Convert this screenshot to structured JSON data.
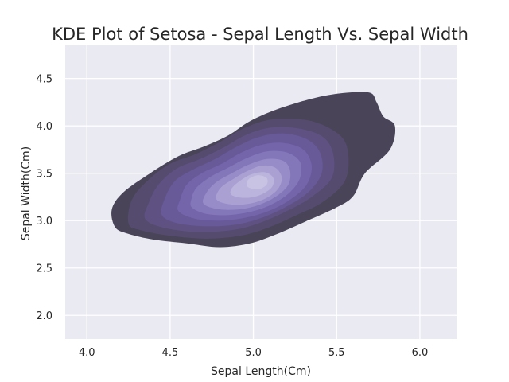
{
  "chart_data": {
    "type": "kde-contour",
    "title": "KDE Plot of Setosa - Sepal Length Vs. Sepal Width",
    "xlabel": "Sepal Length(Cm)",
    "ylabel": "Sepal Width(Cm)",
    "xlim": [
      3.87,
      6.22
    ],
    "ylim": [
      1.75,
      4.85
    ],
    "xticks": [
      4.0,
      4.5,
      5.0,
      5.5,
      6.0
    ],
    "yticks": [
      2.0,
      2.5,
      3.0,
      3.5,
      4.0,
      4.5
    ],
    "grid": true,
    "background": "#eaeaf2",
    "gridColor": "#ffffff",
    "levelColors": [
      "#4a4458",
      "#554b6e",
      "#5f5283",
      "#685a98",
      "#7465ab",
      "#8377ba",
      "#978cc7",
      "#aaa1d2",
      "#bbb4dc",
      "#c8c2e3"
    ],
    "levels": [
      {
        "points": [
          [
            4.17,
            2.93
          ],
          [
            4.25,
            2.86
          ],
          [
            4.4,
            2.8
          ],
          [
            4.6,
            2.76
          ],
          [
            4.8,
            2.72
          ],
          [
            4.98,
            2.76
          ],
          [
            5.13,
            2.85
          ],
          [
            5.3,
            2.98
          ],
          [
            5.5,
            3.14
          ],
          [
            5.6,
            3.26
          ],
          [
            5.67,
            3.5
          ],
          [
            5.82,
            3.75
          ],
          [
            5.85,
            4.0
          ],
          [
            5.78,
            4.1
          ],
          [
            5.74,
            4.25
          ],
          [
            5.7,
            4.35
          ],
          [
            5.56,
            4.35
          ],
          [
            5.38,
            4.3
          ],
          [
            5.15,
            4.18
          ],
          [
            4.98,
            4.05
          ],
          [
            4.85,
            3.9
          ],
          [
            4.7,
            3.78
          ],
          [
            4.55,
            3.68
          ],
          [
            4.38,
            3.5
          ],
          [
            4.22,
            3.3
          ],
          [
            4.15,
            3.12
          ]
        ]
      },
      {
        "points": [
          [
            4.25,
            2.97
          ],
          [
            4.32,
            2.9
          ],
          [
            4.5,
            2.84
          ],
          [
            4.72,
            2.81
          ],
          [
            4.92,
            2.84
          ],
          [
            5.08,
            2.92
          ],
          [
            5.25,
            3.05
          ],
          [
            5.42,
            3.2
          ],
          [
            5.55,
            3.42
          ],
          [
            5.57,
            3.7
          ],
          [
            5.52,
            3.9
          ],
          [
            5.35,
            4.05
          ],
          [
            5.12,
            4.07
          ],
          [
            4.95,
            3.98
          ],
          [
            4.8,
            3.83
          ],
          [
            4.65,
            3.7
          ],
          [
            4.5,
            3.6
          ],
          [
            4.37,
            3.43
          ],
          [
            4.27,
            3.22
          ]
        ]
      },
      {
        "points": [
          [
            4.35,
            3.02
          ],
          [
            4.45,
            2.93
          ],
          [
            4.65,
            2.88
          ],
          [
            4.87,
            2.9
          ],
          [
            5.03,
            2.97
          ],
          [
            5.2,
            3.1
          ],
          [
            5.35,
            3.25
          ],
          [
            5.47,
            3.45
          ],
          [
            5.48,
            3.7
          ],
          [
            5.42,
            3.88
          ],
          [
            5.28,
            3.97
          ],
          [
            5.1,
            3.98
          ],
          [
            4.95,
            3.9
          ],
          [
            4.82,
            3.77
          ],
          [
            4.68,
            3.65
          ],
          [
            4.54,
            3.55
          ],
          [
            4.43,
            3.38
          ],
          [
            4.37,
            3.18
          ]
        ]
      },
      {
        "points": [
          [
            4.45,
            3.06
          ],
          [
            4.55,
            2.97
          ],
          [
            4.73,
            2.94
          ],
          [
            4.9,
            2.96
          ],
          [
            5.05,
            3.03
          ],
          [
            5.2,
            3.15
          ],
          [
            5.33,
            3.3
          ],
          [
            5.41,
            3.5
          ],
          [
            5.4,
            3.72
          ],
          [
            5.32,
            3.86
          ],
          [
            5.18,
            3.92
          ],
          [
            5.03,
            3.88
          ],
          [
            4.9,
            3.78
          ],
          [
            4.77,
            3.65
          ],
          [
            4.64,
            3.54
          ],
          [
            4.53,
            3.42
          ],
          [
            4.47,
            3.24
          ]
        ]
      },
      {
        "points": [
          [
            4.55,
            3.1
          ],
          [
            4.65,
            3.02
          ],
          [
            4.8,
            3.0
          ],
          [
            4.95,
            3.03
          ],
          [
            5.09,
            3.1
          ],
          [
            5.22,
            3.22
          ],
          [
            5.32,
            3.38
          ],
          [
            5.35,
            3.58
          ],
          [
            5.3,
            3.75
          ],
          [
            5.18,
            3.82
          ],
          [
            5.05,
            3.8
          ],
          [
            4.93,
            3.72
          ],
          [
            4.81,
            3.6
          ],
          [
            4.69,
            3.5
          ],
          [
            4.6,
            3.38
          ],
          [
            4.56,
            3.22
          ]
        ]
      },
      {
        "points": [
          [
            4.63,
            3.14
          ],
          [
            4.72,
            3.07
          ],
          [
            4.86,
            3.06
          ],
          [
            5.0,
            3.1
          ],
          [
            5.12,
            3.18
          ],
          [
            5.22,
            3.3
          ],
          [
            5.28,
            3.45
          ],
          [
            5.28,
            3.62
          ],
          [
            5.2,
            3.72
          ],
          [
            5.08,
            3.73
          ],
          [
            4.96,
            3.66
          ],
          [
            4.85,
            3.56
          ],
          [
            4.74,
            3.46
          ],
          [
            4.66,
            3.35
          ],
          [
            4.63,
            3.24
          ]
        ]
      },
      {
        "points": [
          [
            4.7,
            3.18
          ],
          [
            4.79,
            3.12
          ],
          [
            4.92,
            3.12
          ],
          [
            5.04,
            3.17
          ],
          [
            5.14,
            3.26
          ],
          [
            5.21,
            3.38
          ],
          [
            5.22,
            3.53
          ],
          [
            5.18,
            3.63
          ],
          [
            5.08,
            3.65
          ],
          [
            4.97,
            3.59
          ],
          [
            4.87,
            3.5
          ],
          [
            4.78,
            3.41
          ],
          [
            4.72,
            3.3
          ]
        ]
      },
      {
        "points": [
          [
            4.78,
            3.22
          ],
          [
            4.87,
            3.17
          ],
          [
            4.98,
            3.18
          ],
          [
            5.08,
            3.24
          ],
          [
            5.15,
            3.34
          ],
          [
            5.17,
            3.46
          ],
          [
            5.13,
            3.56
          ],
          [
            5.05,
            3.58
          ],
          [
            4.96,
            3.52
          ],
          [
            4.88,
            3.44
          ],
          [
            4.8,
            3.34
          ]
        ]
      },
      {
        "points": [
          [
            4.87,
            3.27
          ],
          [
            4.95,
            3.24
          ],
          [
            5.04,
            3.27
          ],
          [
            5.11,
            3.35
          ],
          [
            5.12,
            3.45
          ],
          [
            5.07,
            3.51
          ],
          [
            4.99,
            3.49
          ],
          [
            4.92,
            3.42
          ],
          [
            4.87,
            3.34
          ]
        ]
      },
      {
        "points": [
          [
            4.97,
            3.35
          ],
          [
            5.03,
            3.33
          ],
          [
            5.08,
            3.38
          ],
          [
            5.08,
            3.45
          ],
          [
            5.03,
            3.48
          ],
          [
            4.98,
            3.45
          ],
          [
            4.96,
            3.4
          ]
        ]
      }
    ]
  }
}
